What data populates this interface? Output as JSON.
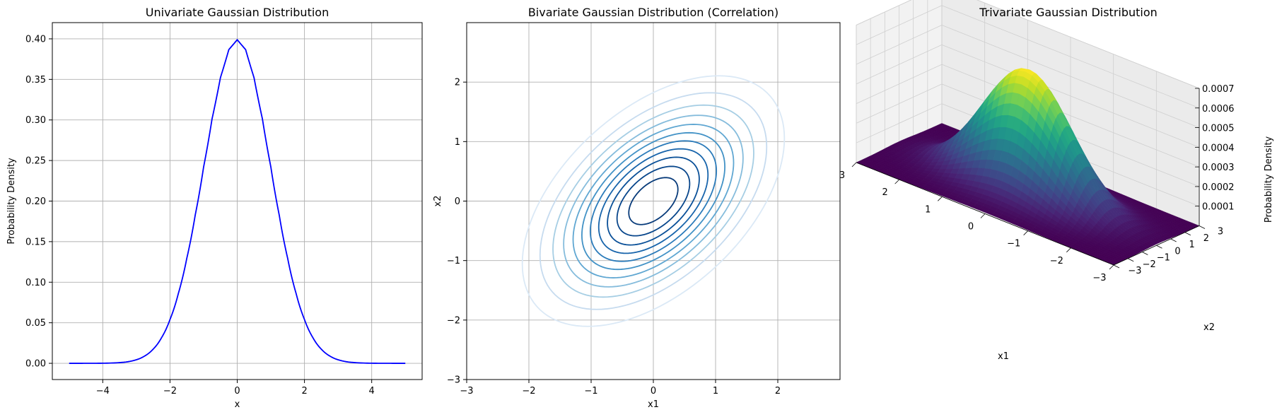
{
  "chart_data": [
    {
      "type": "line",
      "title": "Univariate Gaussian Distribution",
      "xlabel": "x",
      "ylabel": "Probability Density",
      "xlim": [
        -5.5,
        5.5
      ],
      "ylim": [
        -0.02,
        0.42
      ],
      "xticks": [
        "−4",
        "−2",
        "0",
        "2",
        "4"
      ],
      "xtick_values": [
        -4,
        -2,
        0,
        2,
        4
      ],
      "yticks": [
        "0.00",
        "0.05",
        "0.10",
        "0.15",
        "0.20",
        "0.25",
        "0.30",
        "0.35",
        "0.40"
      ],
      "ytick_values": [
        0,
        0.05,
        0.1,
        0.15,
        0.2,
        0.25,
        0.3,
        0.35,
        0.4
      ],
      "grid": true,
      "color": "#0000ff",
      "x": [
        -5,
        -4.5,
        -4,
        -3.5,
        -3,
        -2.75,
        -2.5,
        -2.25,
        -2,
        -1.75,
        -1.5,
        -1.25,
        -1,
        -0.75,
        -0.5,
        -0.25,
        0,
        0.25,
        0.5,
        0.75,
        1,
        1.25,
        1.5,
        1.75,
        2,
        2.25,
        2.5,
        2.75,
        3,
        3.5,
        4,
        4.5,
        5
      ],
      "y": [
        1.5e-06,
        1.6e-05,
        0.000134,
        0.00087,
        0.0044,
        0.0091,
        0.0175,
        0.0317,
        0.054,
        0.0863,
        0.1295,
        0.1826,
        0.242,
        0.3011,
        0.3521,
        0.3867,
        0.3989,
        0.3867,
        0.3521,
        0.3011,
        0.242,
        0.1826,
        0.1295,
        0.0863,
        0.054,
        0.0317,
        0.0175,
        0.0091,
        0.0044,
        0.00087,
        0.000134,
        1.6e-05,
        1.5e-06
      ]
    },
    {
      "type": "contour",
      "title": "Bivariate Gaussian Distribution (Correlation)",
      "xlabel": "x1",
      "ylabel": "x2",
      "xlim": [
        -3,
        3
      ],
      "ylim": [
        -3,
        3
      ],
      "xticks": [
        "−3",
        "−2",
        "−1",
        "0",
        "1",
        "2"
      ],
      "xtick_values": [
        -3,
        -2,
        -1,
        0,
        1,
        2
      ],
      "yticks": [
        "−3",
        "−2",
        "−1",
        "0",
        "1",
        "2"
      ],
      "ytick_values": [
        -3,
        -2,
        -1,
        0,
        1,
        2
      ],
      "grid": true,
      "colormap": "Blues",
      "correlation": 0.5,
      "levels": [
        {
          "value": 0.02,
          "color": "#dbe9f6"
        },
        {
          "value": 0.035,
          "color": "#c6dbef"
        },
        {
          "value": 0.05,
          "color": "#a6cee4"
        },
        {
          "value": 0.065,
          "color": "#85bcdc"
        },
        {
          "value": 0.08,
          "color": "#60a7d2"
        },
        {
          "value": 0.095,
          "color": "#4292c6"
        },
        {
          "value": 0.11,
          "color": "#2b7bba"
        },
        {
          "value": 0.125,
          "color": "#1764ab"
        },
        {
          "value": 0.14,
          "color": "#0a5098"
        },
        {
          "value": 0.155,
          "color": "#08468b"
        },
        {
          "value": 0.17,
          "color": "#083b7a"
        }
      ]
    },
    {
      "type": "surface3d",
      "title": "Trivariate Gaussian Distribution",
      "xlabel": "x1",
      "ylabel": "x2",
      "zlabel": "Probability Density",
      "xlim": [
        -3,
        3
      ],
      "ylim": [
        -3,
        3
      ],
      "zlim": [
        0,
        0.0007
      ],
      "xticks": [
        "−3",
        "−2",
        "−1",
        "0",
        "1",
        "2",
        "3"
      ],
      "yticks": [
        "−3",
        "−2",
        "−1",
        "0",
        "1",
        "2",
        "3"
      ],
      "zticks": [
        "0.0001",
        "0.0002",
        "0.0003",
        "0.0004",
        "0.0005",
        "0.0006",
        "0.0007"
      ],
      "peak": 0.000635,
      "colormap": "viridis"
    }
  ]
}
